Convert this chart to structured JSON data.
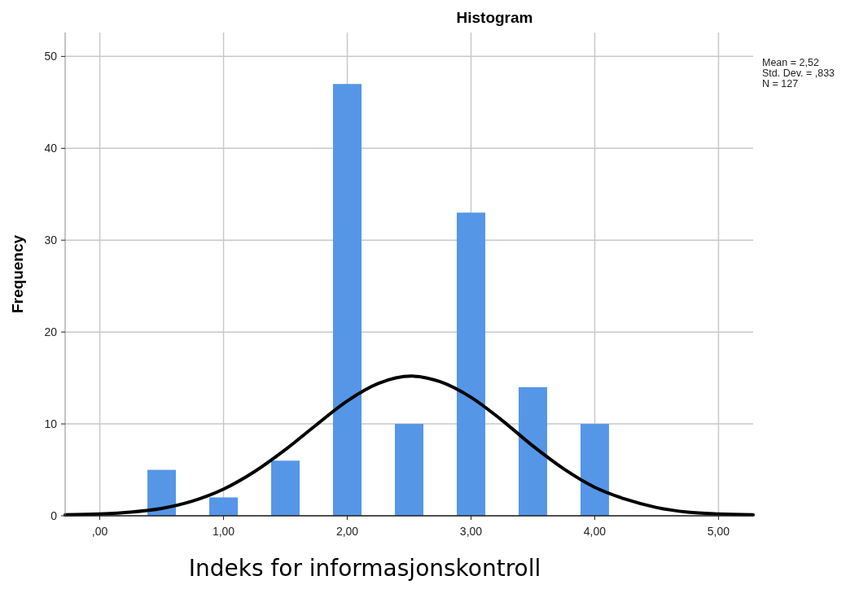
{
  "chart_data": {
    "type": "histogram",
    "title": "Histogram",
    "xlabel": "Indeks for informasjonskontroll",
    "ylabel": "Frequency",
    "bins": [
      0.375,
      0.625,
      0.875,
      1.125,
      1.375,
      1.625,
      1.875,
      2.125,
      2.375,
      2.625,
      2.875,
      3.125,
      3.375,
      3.625,
      3.875,
      4.125
    ],
    "values": [
      5,
      0,
      2,
      0,
      6,
      0,
      47,
      0,
      10,
      0,
      33,
      0,
      14,
      0,
      10
    ],
    "color": "#5596e6",
    "series": [
      {
        "type": "line",
        "color": "#000000",
        "x": [
          -0.28,
          0,
          0.25,
          0.5,
          0.75,
          1,
          1.25,
          1.5,
          1.75,
          2,
          2.25,
          2.52,
          2.75,
          3,
          3.25,
          3.5,
          3.75,
          4,
          4.25,
          4.5,
          4.75,
          5,
          5.28
        ],
        "values": [
          0.1,
          0.2,
          0.4,
          0.8,
          1.6,
          2.9,
          4.8,
          7.2,
          9.9,
          12.5,
          14.4,
          15.2,
          14.6,
          12.9,
          10.4,
          7.6,
          5.1,
          3.1,
          1.8,
          0.9,
          0.4,
          0.2,
          0.1
        ]
      }
    ],
    "xlim": [
      -0.28,
      5.28
    ],
    "xticks": [
      {
        "value": 0,
        "label": ",00"
      },
      {
        "value": 1,
        "label": "1,00"
      },
      {
        "value": 2,
        "label": "2,00"
      },
      {
        "value": 3,
        "label": "3,00"
      },
      {
        "value": 4,
        "label": "4,00"
      },
      {
        "value": 5,
        "label": "5,00"
      }
    ],
    "ylim": [
      0,
      52.6
    ],
    "yticks": [
      0,
      10,
      20,
      30,
      40,
      50
    ],
    "grid": true,
    "annotations": [
      "Mean = 2,52",
      "Std. Dev. = ,833",
      "N = 127"
    ]
  }
}
